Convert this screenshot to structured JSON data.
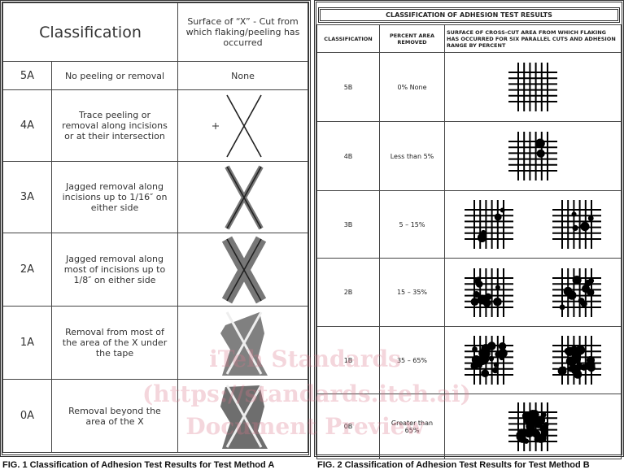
{
  "fig1": {
    "headers": [
      "Classification",
      "Surface of “X” - Cut from which flaking/peeling has occurred"
    ],
    "rows": [
      {
        "cls": "5A",
        "desc": "No peeling or removal",
        "surface": "None"
      },
      {
        "cls": "4A",
        "desc": "Trace peeling or removal along incisions or at their intersection"
      },
      {
        "cls": "3A",
        "desc": "Jagged removal along incisions up to 1/16″ on either side"
      },
      {
        "cls": "2A",
        "desc": "Jagged removal along most of incisions up to 1/8″ on either side"
      },
      {
        "cls": "1A",
        "desc": "Removal from most of the area of the X under the tape"
      },
      {
        "cls": "0A",
        "desc": "Removal beyond the area of the X"
      }
    ],
    "caption": "FIG. 1 Classification of Adhesion Test Results for Test Method A"
  },
  "fig2": {
    "title": "CLASSIFICATION OF ADHESION TEST RESULTS",
    "headers": [
      "CLASSIFICATION",
      "PERCENT AREA REMOVED",
      "SURFACE OF CROSS-CUT AREA FROM WHICH FLAKING HAS OCCURRED FOR SIX PARALLEL CUTS AND ADHESION RANGE BY PERCENT"
    ],
    "rows": [
      {
        "cls": "5B",
        "pct": "0% None"
      },
      {
        "cls": "4B",
        "pct": "Less than 5%"
      },
      {
        "cls": "3B",
        "pct": "5 – 15%"
      },
      {
        "cls": "2B",
        "pct": "15 – 35%"
      },
      {
        "cls": "1B",
        "pct": "35 – 65%"
      },
      {
        "cls": "0B",
        "pct": "Greater than 65%"
      }
    ],
    "caption": "FIG. 2  Classification of Adhesion Test Results for Test Method B"
  },
  "watermark": [
    "iTeh Standards",
    "(https://standards.iteh.ai)",
    "Document Preview"
  ]
}
